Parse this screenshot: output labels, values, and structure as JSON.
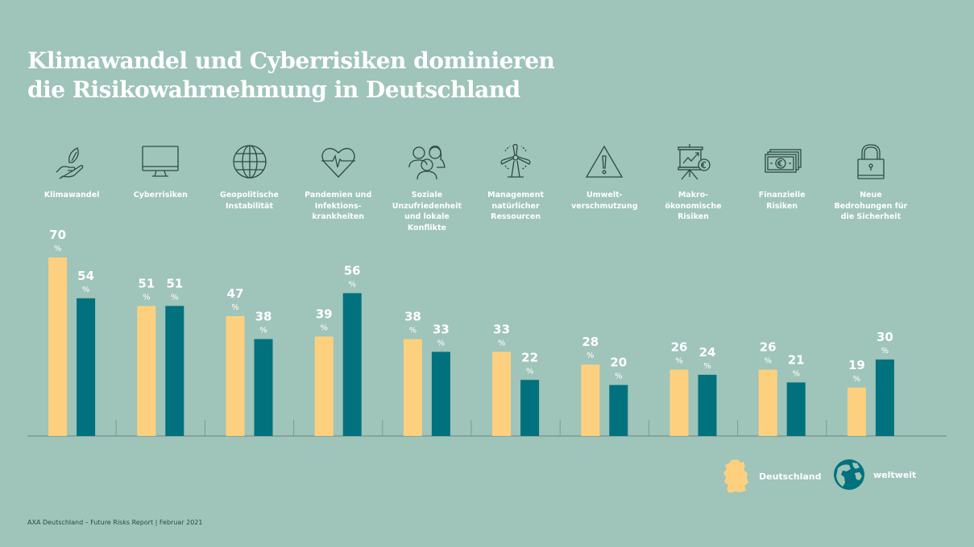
{
  "title": {
    "line1": "Klimawandel und Cyberrisiken dominieren",
    "line2": "die Risikowahrnehmung in Deutschland"
  },
  "colors": {
    "background": "#9fc4b9",
    "deutschland": "#fdd07f",
    "weltweit": "#00717d",
    "icon_stroke": "#2d4a44"
  },
  "categories": [
    {
      "label": "Klimawandel",
      "icon": "leaf-hand-icon"
    },
    {
      "label": "Cyberrisiken",
      "icon": "monitor-icon"
    },
    {
      "label": "Geopolitische\nInstabilität",
      "icon": "globe-icon"
    },
    {
      "label": "Pandemien und\nInfektions-\nkrankheiten",
      "icon": "heartbeat-icon"
    },
    {
      "label": "Soziale\nUnzufriedenheit\nund lokale\nKonflikte",
      "icon": "people-icon"
    },
    {
      "label": "Management\nnatürlicher\nRessourcen",
      "icon": "wind-turbine-icon"
    },
    {
      "label": "Umwelt-\nverschmutzung",
      "icon": "warning-icon"
    },
    {
      "label": "Makro-\nökonomische\nRisiken",
      "icon": "chart-presentation-icon"
    },
    {
      "label": "Finanzielle\nRisiken",
      "icon": "banknotes-icon"
    },
    {
      "label": "Neue\nBedrohungen für\ndie Sicherheit",
      "icon": "padlock-icon"
    }
  ],
  "chart_data": {
    "type": "bar",
    "title": "Klimawandel und Cyberrisiken dominieren die Risikowahrnehmung in Deutschland",
    "categories": [
      "Klimawandel",
      "Cyberrisiken",
      "Geopolitische Instabilität",
      "Pandemien und Infektionskrankheiten",
      "Soziale Unzufriedenheit und lokale Konflikte",
      "Management natürlicher Ressourcen",
      "Umweltverschmutzung",
      "Makroökonomische Risiken",
      "Finanzielle Risiken",
      "Neue Bedrohungen für die Sicherheit"
    ],
    "series": [
      {
        "name": "Deutschland",
        "values": [
          70,
          51,
          47,
          39,
          38,
          33,
          28,
          26,
          26,
          19
        ]
      },
      {
        "name": "weltweit",
        "values": [
          54,
          51,
          38,
          56,
          33,
          22,
          20,
          24,
          21,
          30
        ]
      }
    ],
    "unit": "%",
    "xlabel": "",
    "ylabel": "",
    "ylim": [
      0,
      100
    ],
    "grid": false,
    "legend": "bottom-right"
  },
  "legend": {
    "deutschland": "Deutschland",
    "weltweit": "weltweit"
  },
  "footer": "AXA Deutschland – Future Risks Report  |  Februar 2021"
}
